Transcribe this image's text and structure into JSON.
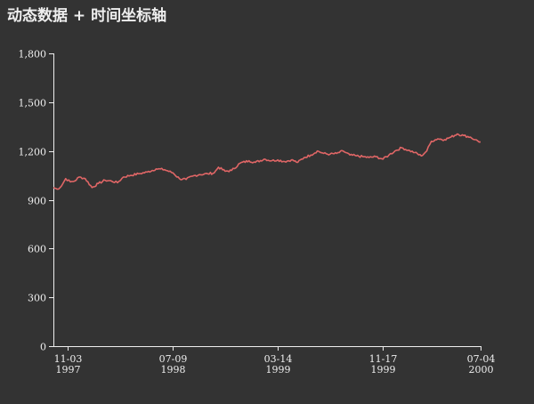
{
  "chart_data": {
    "type": "line",
    "title": "动态数据 + 时间坐标轴",
    "xlabel": "",
    "ylabel": "",
    "xlim": [
      "1997-10-01",
      "2000-07-04"
    ],
    "ylim": [
      0,
      1800
    ],
    "yticks": [
      {
        "value": 0,
        "label": "0"
      },
      {
        "value": 300,
        "label": "300"
      },
      {
        "value": 600,
        "label": "600"
      },
      {
        "value": 900,
        "label": "900"
      },
      {
        "value": 1200,
        "label": "1,200"
      },
      {
        "value": 1500,
        "label": "1,500"
      },
      {
        "value": 1800,
        "label": "1,800"
      }
    ],
    "xticks": [
      {
        "date": "1997-11-03",
        "line1": "11-03",
        "line2": "1997"
      },
      {
        "date": "1998-07-09",
        "line1": "07-09",
        "line2": "1998"
      },
      {
        "date": "1999-03-14",
        "line1": "03-14",
        "line2": "1999"
      },
      {
        "date": "1999-11-17",
        "line1": "11-17",
        "line2": "1999"
      },
      {
        "date": "2000-07-04",
        "line1": "07-04",
        "line2": "2000"
      }
    ],
    "grid": false,
    "legend": "none",
    "series": [
      {
        "color": "#e06666",
        "points": [
          [
            "1997-10-01",
            975
          ],
          [
            "1997-10-10",
            965
          ],
          [
            "1997-10-20",
            985
          ],
          [
            "1997-10-30",
            1030
          ],
          [
            "1997-11-10",
            1010
          ],
          [
            "1997-11-20",
            1015
          ],
          [
            "1997-12-01",
            1040
          ],
          [
            "1997-12-15",
            1030
          ],
          [
            "1997-12-31",
            975
          ],
          [
            "1998-01-15",
            1000
          ],
          [
            "1998-01-31",
            1020
          ],
          [
            "1998-02-15",
            1015
          ],
          [
            "1998-03-01",
            1005
          ],
          [
            "1998-03-15",
            1040
          ],
          [
            "1998-04-01",
            1050
          ],
          [
            "1998-04-20",
            1060
          ],
          [
            "1998-05-10",
            1070
          ],
          [
            "1998-05-31",
            1090
          ],
          [
            "1998-06-20",
            1085
          ],
          [
            "1998-07-10",
            1065
          ],
          [
            "1998-07-25",
            1030
          ],
          [
            "1998-08-10",
            1025
          ],
          [
            "1998-08-25",
            1045
          ],
          [
            "1998-09-10",
            1055
          ],
          [
            "1998-09-30",
            1060
          ],
          [
            "1998-10-15",
            1065
          ],
          [
            "1998-10-25",
            1100
          ],
          [
            "1998-11-10",
            1075
          ],
          [
            "1998-11-25",
            1080
          ],
          [
            "1998-12-15",
            1125
          ],
          [
            "1999-01-05",
            1140
          ],
          [
            "1999-01-20",
            1130
          ],
          [
            "1999-02-10",
            1150
          ],
          [
            "1999-02-28",
            1140
          ],
          [
            "1999-03-14",
            1145
          ],
          [
            "1999-03-30",
            1135
          ],
          [
            "1999-04-15",
            1145
          ],
          [
            "1999-04-30",
            1130
          ],
          [
            "1999-05-15",
            1160
          ],
          [
            "1999-05-31",
            1175
          ],
          [
            "1999-06-15",
            1200
          ],
          [
            "1999-06-30",
            1185
          ],
          [
            "1999-07-15",
            1180
          ],
          [
            "1999-07-31",
            1185
          ],
          [
            "1999-08-15",
            1200
          ],
          [
            "1999-08-31",
            1175
          ],
          [
            "1999-09-15",
            1170
          ],
          [
            "1999-09-30",
            1165
          ],
          [
            "1999-10-15",
            1160
          ],
          [
            "1999-10-31",
            1165
          ],
          [
            "1999-11-17",
            1150
          ],
          [
            "1999-12-01",
            1175
          ],
          [
            "1999-12-15",
            1200
          ],
          [
            "1999-12-31",
            1220
          ],
          [
            "2000-01-15",
            1205
          ],
          [
            "2000-01-31",
            1190
          ],
          [
            "2000-02-15",
            1170
          ],
          [
            "2000-02-28",
            1200
          ],
          [
            "2000-03-10",
            1260
          ],
          [
            "2000-03-25",
            1275
          ],
          [
            "2000-04-10",
            1270
          ],
          [
            "2000-04-25",
            1285
          ],
          [
            "2000-05-10",
            1305
          ],
          [
            "2000-05-25",
            1295
          ],
          [
            "2000-06-10",
            1285
          ],
          [
            "2000-06-20",
            1270
          ],
          [
            "2000-07-04",
            1255
          ]
        ]
      }
    ]
  }
}
